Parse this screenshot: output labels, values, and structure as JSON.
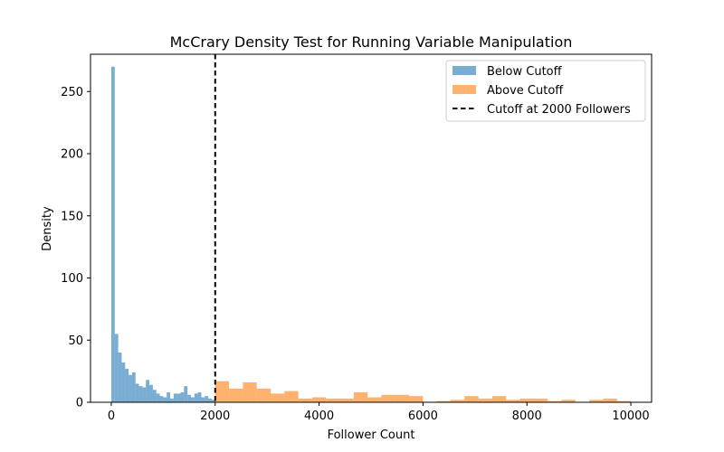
{
  "chart_data": {
    "type": "histogram",
    "title": "McCrary Density Test for Running Variable Manipulation",
    "xlabel": "Follower Count",
    "ylabel": "Density",
    "xlim": [
      -400,
      10400
    ],
    "ylim": [
      0,
      280
    ],
    "xticks": [
      0,
      2000,
      4000,
      6000,
      8000,
      10000
    ],
    "yticks": [
      0,
      50,
      100,
      150,
      200,
      250
    ],
    "grid": false,
    "legend_position": "top-right",
    "cutoff": {
      "x": 2000,
      "label": "Cutoff at 2000 Followers",
      "style": "dashed",
      "color": "#000000"
    },
    "series": [
      {
        "name": "Below Cutoff",
        "color": "#1f77b4",
        "opacity": 0.6,
        "bin_width": 66.67,
        "start": 0,
        "values": [
          270,
          55,
          40,
          32,
          27,
          22,
          24,
          15,
          13,
          12,
          18,
          14,
          10,
          7,
          5,
          4,
          8,
          3,
          7,
          7,
          8,
          13,
          6,
          4,
          7,
          8,
          4,
          5,
          3,
          2
        ]
      },
      {
        "name": "Above Cutoff",
        "color": "#ff7f0e",
        "opacity": 0.6,
        "bin_width": 266.67,
        "start": 2000,
        "values": [
          17,
          11,
          16,
          11,
          7,
          9,
          3,
          4,
          3,
          3,
          8,
          4,
          6,
          6,
          5,
          0,
          1,
          2,
          5,
          3,
          5,
          2,
          3,
          3,
          1,
          2,
          0,
          2,
          3,
          1
        ]
      }
    ]
  }
}
